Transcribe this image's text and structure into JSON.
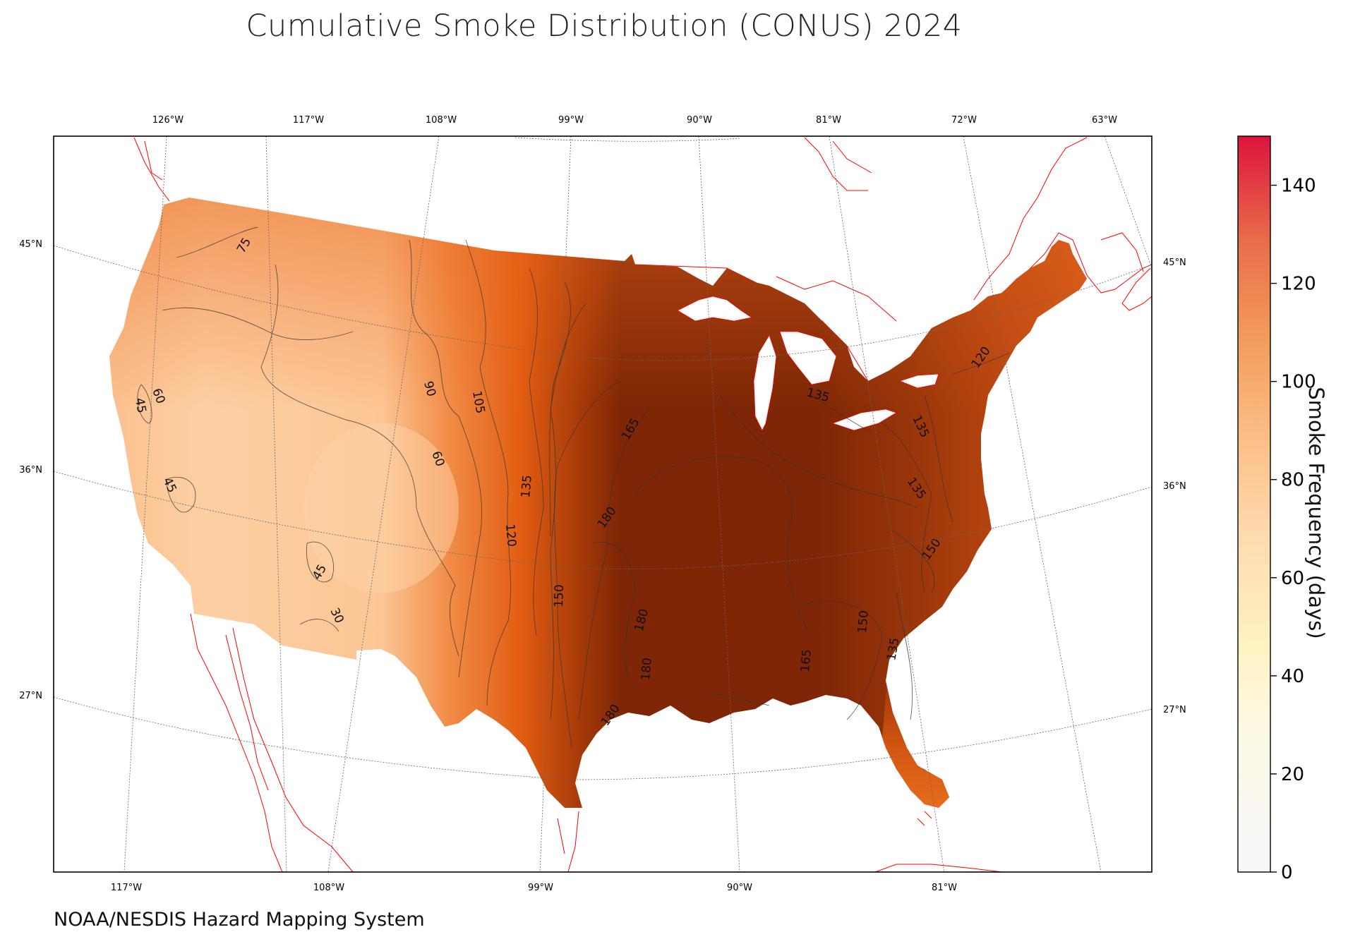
{
  "title": "Cumulative Smoke Distribution (CONUS) 2024",
  "credit": "NOAA/NESDIS Hazard Mapping System",
  "colorbar": {
    "label": "Smoke Frequency (days)",
    "ticks": [
      "0",
      "20",
      "40",
      "60",
      "80",
      "100",
      "120",
      "140"
    ],
    "range": [
      0,
      150
    ],
    "stops": [
      "#f8f8fc",
      "#fffbe6",
      "#fff3c4",
      "#ffdfb0",
      "#fbbf86",
      "#f39a5a",
      "#e8704a",
      "#dc143c"
    ]
  },
  "graticule": {
    "top_lon_labels": [
      "126°W",
      "117°W",
      "108°W",
      "99°W",
      "90°W",
      "81°W",
      "72°W",
      "63°W"
    ],
    "bottom_lon_labels": [
      "117°W",
      "108°W",
      "99°W",
      "90°W",
      "81°W"
    ],
    "left_lat_labels": [
      "45°N",
      "36°N",
      "27°N"
    ],
    "right_lat_labels": [
      "45°N",
      "36°N",
      "27°N"
    ]
  },
  "contour_labels": [
    "75",
    "60",
    "45",
    "45",
    "45",
    "30",
    "90",
    "105",
    "60",
    "135",
    "120",
    "150",
    "165",
    "180",
    "180",
    "180",
    "180",
    "135",
    "120",
    "135",
    "135",
    "150",
    "150",
    "135",
    "165"
  ],
  "colors": {
    "coast": "#ff0000",
    "grid": "#666666",
    "low": "#fdd2a6",
    "mid": "#e45d12",
    "high": "#7e2606"
  }
}
